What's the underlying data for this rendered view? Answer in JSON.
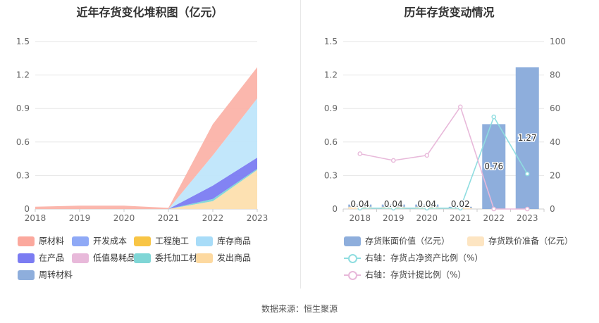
{
  "chart_data": [
    {
      "type": "area",
      "title": "近年存货变化堆积图（亿元）",
      "stacked": true,
      "x": [
        "2018",
        "2019",
        "2020",
        "2021",
        "2022",
        "2023"
      ],
      "ylim": [
        0,
        1.5
      ],
      "yticks": [
        "0",
        "0.3",
        "0.6",
        "0.9",
        "1.2",
        "1.5"
      ],
      "grid": true,
      "legend_position": "bottom",
      "series": [
        {
          "name": "发出商品",
          "color": "#fddfae",
          "values": [
            0,
            0,
            0,
            0,
            0.07,
            0.35
          ]
        },
        {
          "name": "委托加工材料",
          "color": "#7fd6d6",
          "values": [
            0,
            0,
            0,
            0,
            0.02,
            0.01
          ]
        },
        {
          "name": "低值易耗品",
          "color": "#e8b9da",
          "values": [
            0,
            0,
            0,
            0,
            0,
            0
          ]
        },
        {
          "name": "在产品",
          "color": "#7b7cf2",
          "values": [
            0,
            0,
            0,
            0,
            0.12,
            0.1
          ]
        },
        {
          "name": "工程施工",
          "color": "#f8c545",
          "values": [
            0,
            0,
            0,
            0,
            0,
            0
          ]
        },
        {
          "name": "开发成本",
          "color": "#8fa9f6",
          "values": [
            0,
            0,
            0,
            0,
            0,
            0
          ]
        },
        {
          "name": "周转材料",
          "color": "#8eaedc",
          "values": [
            0,
            0,
            0,
            0,
            0,
            0
          ]
        },
        {
          "name": "库存商品",
          "color": "#bfe6fb",
          "values": [
            0,
            0,
            0,
            0,
            0.27,
            0.53
          ]
        },
        {
          "name": "原材料",
          "color": "#fbb3a9",
          "values": [
            0.02,
            0.03,
            0.03,
            0.01,
            0.28,
            0.28
          ]
        }
      ],
      "legend": [
        {
          "name": "原材料",
          "color": "#fba89d"
        },
        {
          "name": "开发成本",
          "color": "#8fa9f6"
        },
        {
          "name": "工程施工",
          "color": "#f8c545"
        },
        {
          "name": "库存商品",
          "color": "#a8dcf8"
        },
        {
          "name": "在产品",
          "color": "#7b7cf2"
        },
        {
          "name": "低值易耗品",
          "color": "#e8b9da"
        },
        {
          "name": "委托加工材料",
          "color": "#7fd6d6"
        },
        {
          "name": "发出商品",
          "color": "#fdd9a0"
        },
        {
          "name": "周转材料",
          "color": "#8eaedc"
        }
      ]
    },
    {
      "type": "bar",
      "title": "历年存货变动情况",
      "categories": [
        "2018",
        "2019",
        "2020",
        "2021",
        "2022",
        "2023"
      ],
      "ylim": [
        0,
        1.5
      ],
      "yticks": [
        "0",
        "0.3",
        "0.6",
        "0.9",
        "1.2",
        "1.5"
      ],
      "y2lim": [
        0,
        100
      ],
      "y2ticks": [
        "0",
        "20",
        "40",
        "60",
        "80",
        "100"
      ],
      "grid": true,
      "legend_position": "bottom",
      "series": [
        {
          "name": "存货账面价值（亿元）",
          "axis": "left",
          "kind": "bar",
          "color": "#8eaedc",
          "values": [
            0.04,
            0.04,
            0.04,
            0.02,
            0.76,
            1.27
          ],
          "labels": [
            "0.04",
            "0.04",
            "0.04",
            "0.02",
            "0.76",
            "1.27"
          ]
        },
        {
          "name": "存货跌价准备（亿元）",
          "axis": "left",
          "kind": "bar",
          "color": "#fde5c2",
          "values": [
            0.02,
            0.02,
            0.02,
            0.01,
            0,
            0
          ]
        },
        {
          "name": "右轴：存货占净资产比例（%）",
          "axis": "right",
          "kind": "line",
          "color": "#8fdde0",
          "values": [
            0.5,
            0.5,
            0.5,
            0.5,
            55,
            21
          ]
        },
        {
          "name": "右轴：存货计提比例（%）",
          "axis": "right",
          "kind": "line",
          "color": "#e8b9da",
          "values": [
            33,
            29,
            32,
            61,
            0,
            0
          ]
        }
      ]
    }
  ],
  "footer": {
    "source_text": "数据来源：恒生聚源"
  }
}
